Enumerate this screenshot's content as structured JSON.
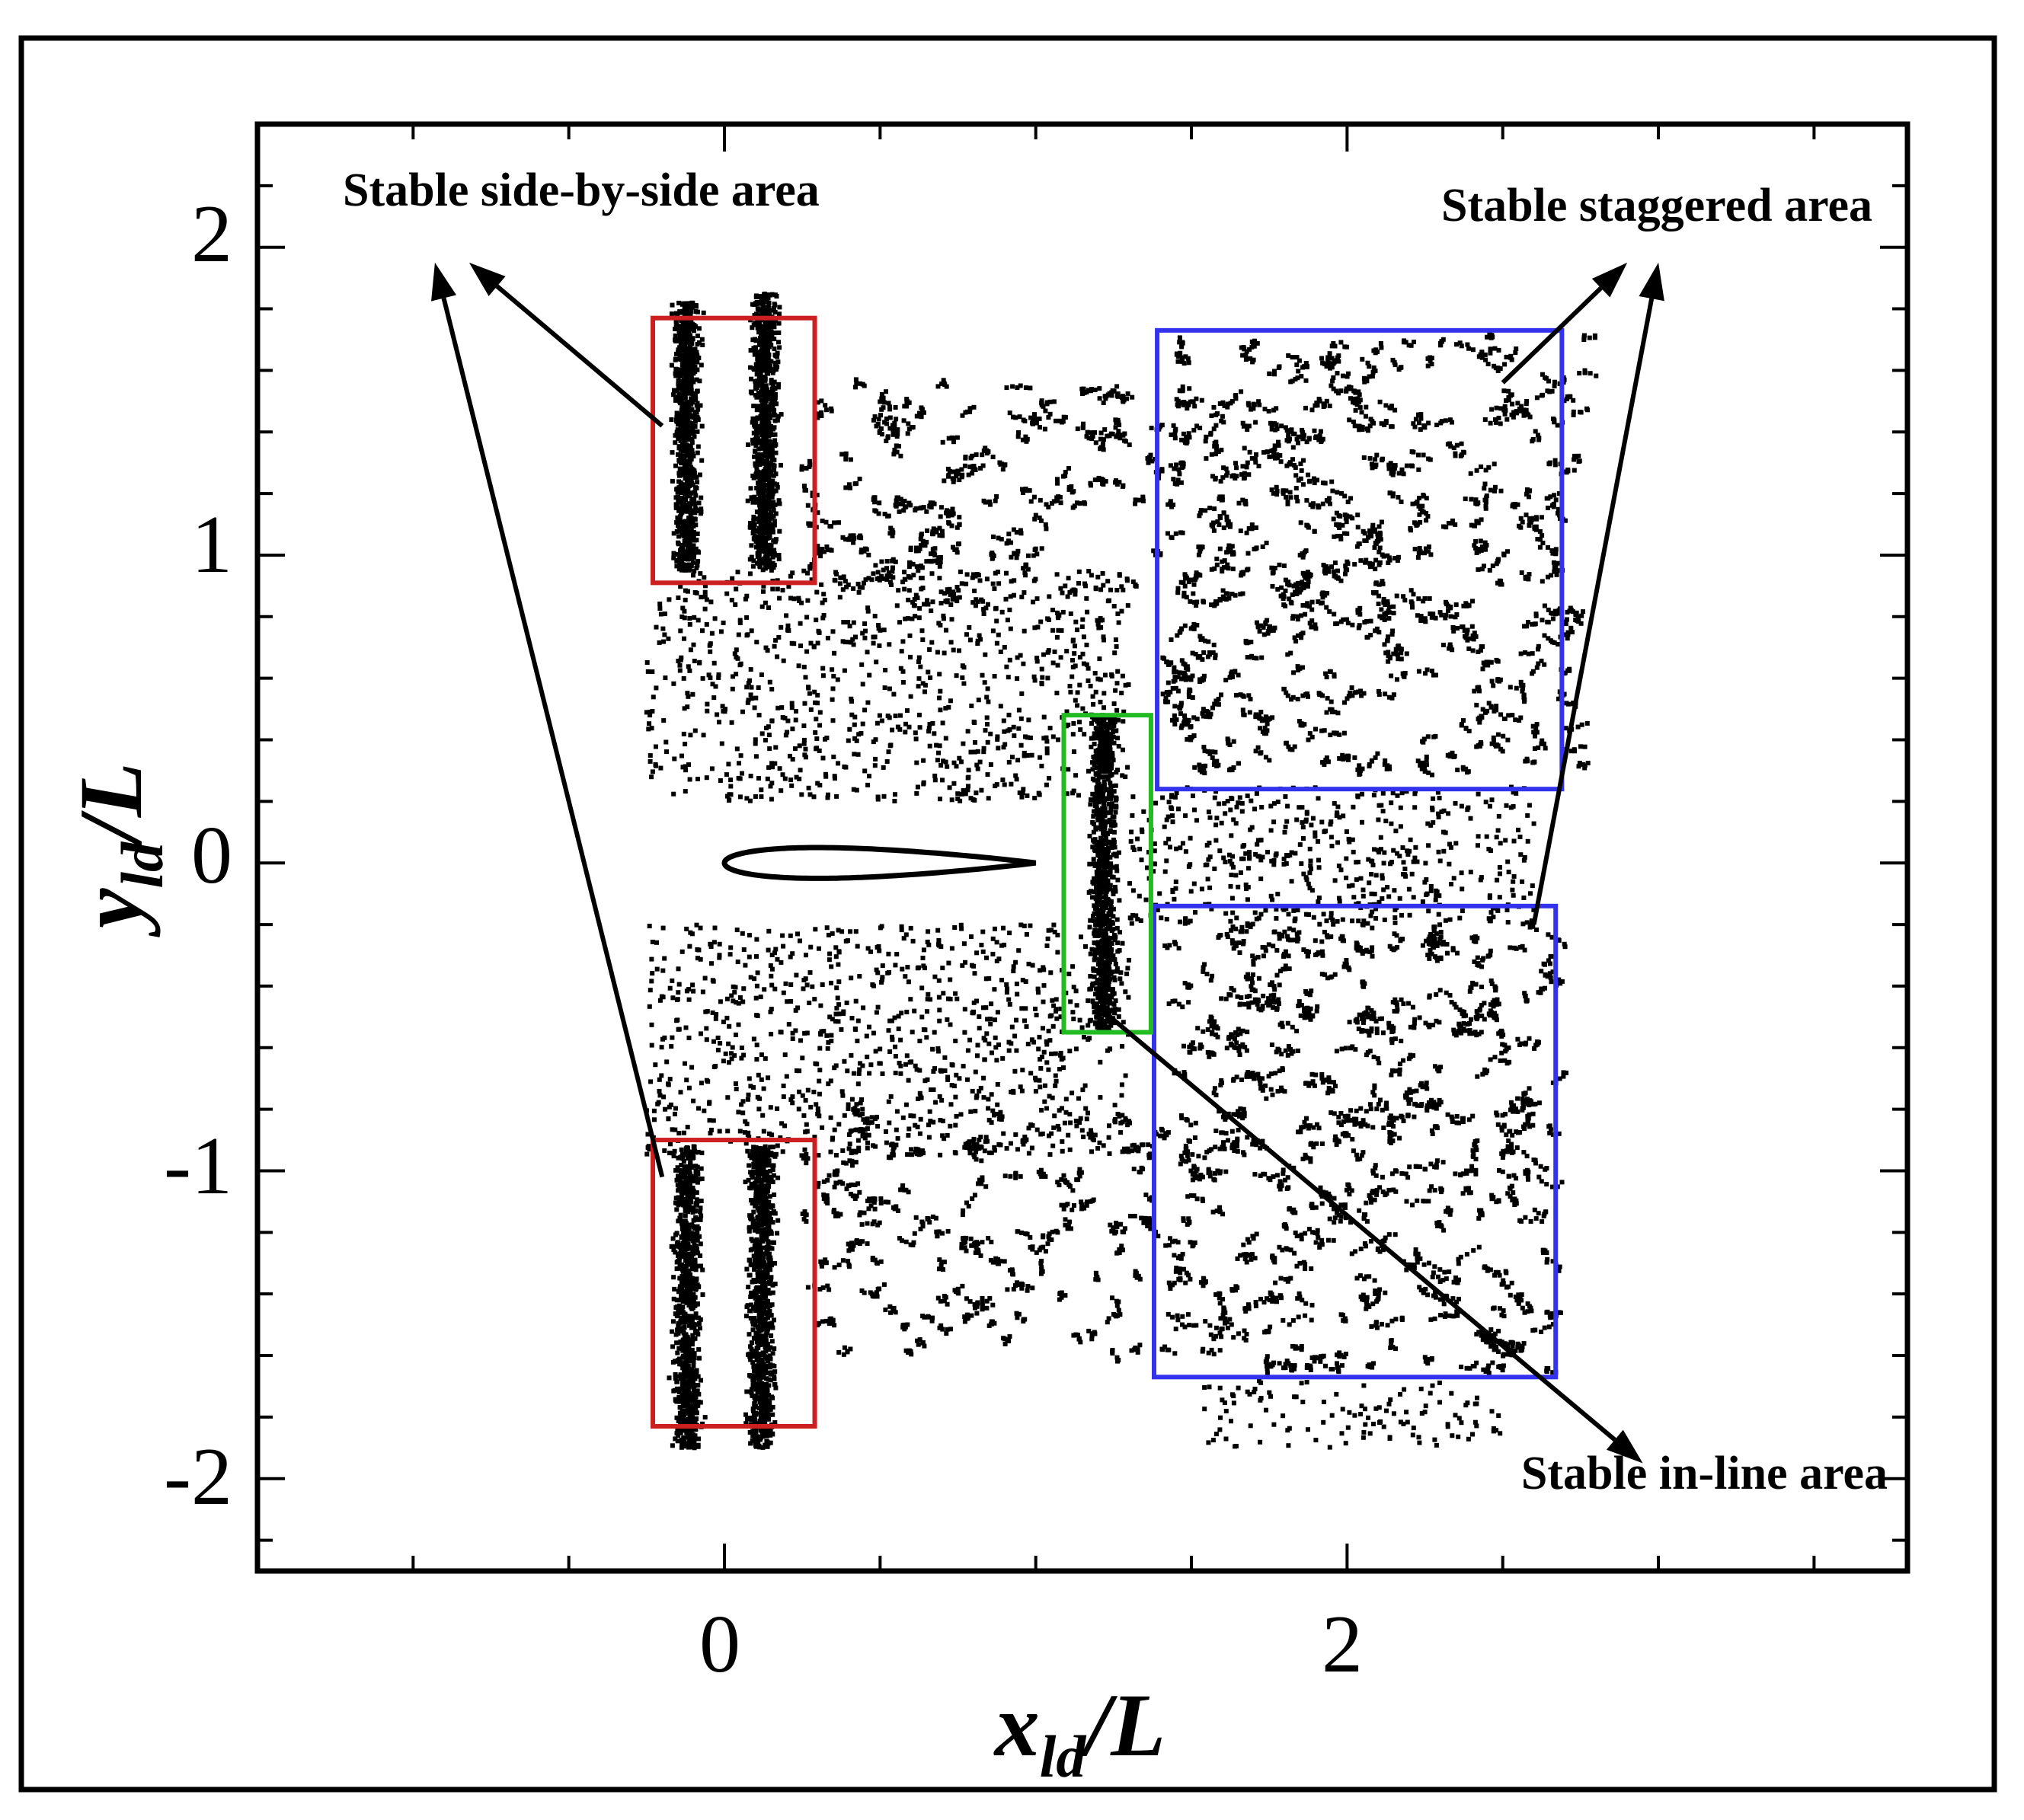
{
  "chart_data": {
    "type": "scatter",
    "title": "",
    "xlabel": {
      "main": "x",
      "sub": "ld",
      "tail": "/L"
    },
    "ylabel": {
      "main": "y",
      "sub": "ld",
      "tail": "/L"
    },
    "xlim": [
      -1.5,
      3.8
    ],
    "ylim": [
      -2.3,
      2.4
    ],
    "x_ticks": [
      0,
      2
    ],
    "x_tick_labels": [
      "0",
      "2"
    ],
    "y_ticks": [
      -2,
      -1,
      0,
      1,
      2
    ],
    "y_tick_labels": [
      "-2",
      "-1",
      "0",
      "1",
      "2"
    ],
    "x_minor_step": 0.5,
    "y_minor_step": 0.2,
    "grid": false,
    "point_color": "#000000",
    "airfoil": {
      "leading_edge": [
        0,
        0
      ],
      "trailing_edge": [
        1,
        0
      ],
      "max_half_thickness": 0.06
    },
    "regions": [
      {
        "name": "Stable side-by-side area",
        "color": "#cc1f1f",
        "x": [
          -0.23,
          0.29
        ],
        "y": [
          0.91,
          1.77
        ]
      },
      {
        "name": "Stable side-by-side area",
        "color": "#cc1f1f",
        "x": [
          -0.23,
          0.29
        ],
        "y": [
          -1.83,
          -0.9
        ]
      },
      {
        "name": "Stable staggered area",
        "color": "#3333ee",
        "x": [
          1.39,
          2.69
        ],
        "y": [
          0.24,
          1.73
        ]
      },
      {
        "name": "Stable staggered area",
        "color": "#3333ee",
        "x": [
          1.38,
          2.67
        ],
        "y": [
          -1.67,
          -0.14
        ]
      },
      {
        "name": "Stable in-line area",
        "color": "#22bb22",
        "x": [
          1.09,
          1.37
        ],
        "y": [
          -0.55,
          0.48
        ]
      }
    ],
    "annotations": [
      {
        "text": "Stable side-by-side area",
        "anchor_xy": [
          -0.82,
          2.1
        ]
      },
      {
        "text": "Stable staggered area",
        "anchor_xy": [
          2.9,
          2.1
        ]
      },
      {
        "text": "Stable in-line area",
        "anchor_xy": [
          2.9,
          -2.0
        ]
      }
    ],
    "arrows": [
      {
        "from": [
          -0.2,
          1.42
        ],
        "to": [
          -0.82,
          1.95
        ]
      },
      {
        "from": [
          -0.2,
          -1.02
        ],
        "to": [
          -0.93,
          1.95
        ]
      },
      {
        "from": [
          2.5,
          1.56
        ],
        "to": [
          2.9,
          1.95
        ]
      },
      {
        "from": [
          2.6,
          -0.2
        ],
        "to": [
          3.0,
          1.95
        ]
      },
      {
        "from": [
          1.18,
          -0.45
        ],
        "to": [
          2.95,
          -1.95
        ]
      }
    ],
    "point_clusters": [
      {
        "region": "dense column",
        "x_center": -0.12,
        "x_spread": 0.06,
        "y": [
          0.95,
          1.82
        ],
        "approx_points": 900
      },
      {
        "region": "dense column",
        "x_center": 0.13,
        "x_spread": 0.06,
        "y": [
          0.95,
          1.85
        ],
        "approx_points": 900
      },
      {
        "region": "dense column",
        "x_center": -0.12,
        "x_spread": 0.06,
        "y": [
          -1.9,
          -0.92
        ],
        "approx_points": 900
      },
      {
        "region": "dense column",
        "x_center": 0.12,
        "x_spread": 0.06,
        "y": [
          -1.9,
          -0.92
        ],
        "approx_points": 900
      },
      {
        "region": "dense column",
        "x_center": 1.22,
        "x_spread": 0.06,
        "y": [
          -0.55,
          0.48
        ],
        "approx_points": 1000
      },
      {
        "region": "filaments",
        "x": [
          0.25,
          1.4
        ],
        "y": [
          0.8,
          1.55
        ],
        "approx_points": 700
      },
      {
        "region": "filaments",
        "x": [
          0.25,
          1.4
        ],
        "y": [
          -1.6,
          -0.8
        ],
        "approx_points": 700
      },
      {
        "region": "sparse wake",
        "x": [
          -0.25,
          1.3
        ],
        "y": [
          0.2,
          0.95
        ],
        "approx_points": 900
      },
      {
        "region": "sparse wake",
        "x": [
          -0.25,
          1.3
        ],
        "y": [
          -0.95,
          -0.2
        ],
        "approx_points": 900
      },
      {
        "region": "sparse wake",
        "x": [
          1.3,
          2.6
        ],
        "y": [
          -0.2,
          0.25
        ],
        "approx_points": 500
      },
      {
        "region": "filaments",
        "x": [
          1.4,
          2.75
        ],
        "y": [
          0.28,
          1.7
        ],
        "approx_points": 2000
      },
      {
        "region": "filaments",
        "x": [
          1.4,
          2.65
        ],
        "y": [
          -1.65,
          -0.18
        ],
        "approx_points": 2000
      },
      {
        "region": "sparse",
        "x": [
          1.5,
          2.5
        ],
        "y": [
          -1.9,
          -1.68
        ],
        "approx_points": 120
      }
    ]
  }
}
